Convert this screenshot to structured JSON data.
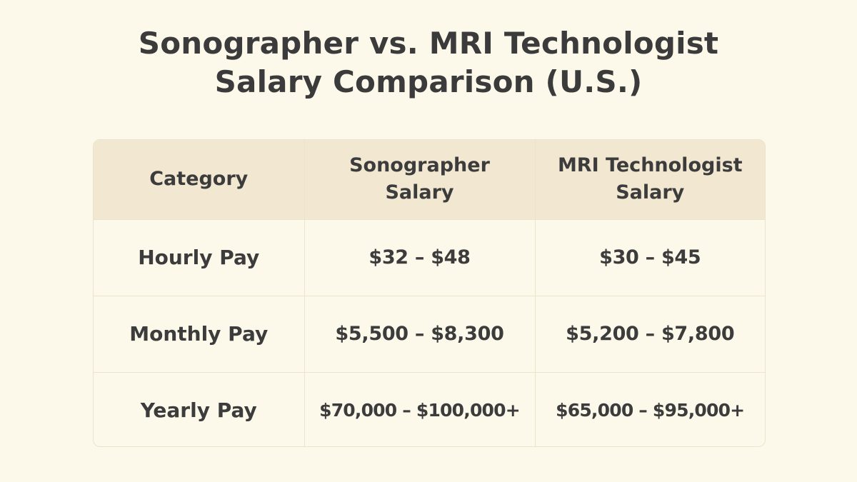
{
  "title": {
    "line1": "Sonographer vs. MRI Technologist",
    "line2": "Salary Comparison (U.S.)"
  },
  "chart_data": {
    "type": "table",
    "columns": [
      {
        "line1": "Category",
        "line2": ""
      },
      {
        "line1": "Sonographer",
        "line2": "Salary"
      },
      {
        "line1": "MRI Technologist",
        "line2": "Salary"
      }
    ],
    "rows": [
      {
        "category": "Hourly Pay",
        "sonographer": "$32 – $48",
        "mri": "$30 – $45"
      },
      {
        "category": "Monthly Pay",
        "sonographer": "$5,500 – $8,300",
        "mri": "$5,200 – $7,800"
      },
      {
        "category": "Yearly Pay",
        "sonographer": "$70,000 – $100,000+",
        "mri": "$65,000 – $95,000+"
      }
    ]
  },
  "colors": {
    "background": "#fdf9ea",
    "header_fill": "#f2e7d1",
    "border": "#ebe3cc",
    "text": "#3c3c3c"
  }
}
